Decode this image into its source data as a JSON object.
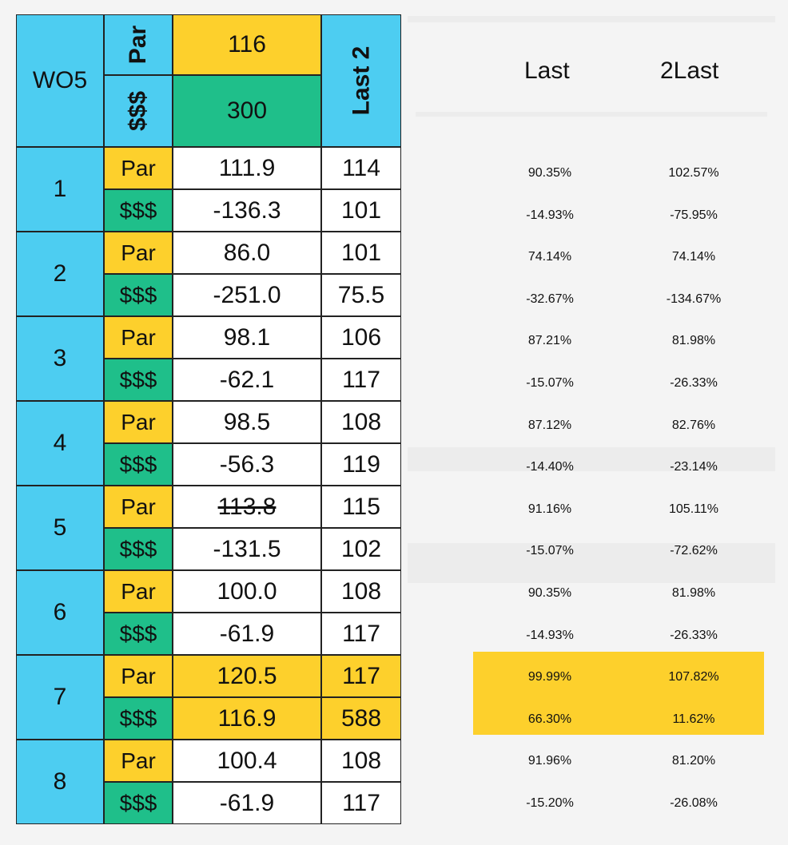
{
  "header": {
    "title": "WO5",
    "par_label": "Par",
    "money_label": "$$$",
    "par_value": "116",
    "money_value": "300",
    "last2_label": "Last 2"
  },
  "rows": [
    {
      "num": "1",
      "par": "111.9",
      "par_last2": "114",
      "money": "-136.3",
      "money_last2": "101"
    },
    {
      "num": "2",
      "par": "86.0",
      "par_last2": "101",
      "money": "-251.0",
      "money_last2": "75.5"
    },
    {
      "num": "3",
      "par": "98.1",
      "par_last2": "106",
      "money": "-62.1",
      "money_last2": "117"
    },
    {
      "num": "4",
      "par": "98.5",
      "par_last2": "108",
      "money": "-56.3",
      "money_last2": "119"
    },
    {
      "num": "5",
      "par": "113.8",
      "par_last2": "115",
      "money": "-131.5",
      "money_last2": "102"
    },
    {
      "num": "6",
      "par": "100.0",
      "par_last2": "108",
      "money": "-61.9",
      "money_last2": "117"
    },
    {
      "num": "7",
      "par": "120.5",
      "par_last2": "117",
      "money": "116.9",
      "money_last2": "588"
    },
    {
      "num": "8",
      "par": "100.4",
      "par_last2": "108",
      "money": "-61.9",
      "money_last2": "117"
    }
  ],
  "right": {
    "col1_header": "Last",
    "col2_header": "2Last",
    "values": [
      [
        "90.35%",
        "102.57%"
      ],
      [
        "-14.93%",
        "-75.95%"
      ],
      [
        "74.14%",
        "74.14%"
      ],
      [
        "-32.67%",
        "-134.67%"
      ],
      [
        "87.21%",
        "81.98%"
      ],
      [
        "-15.07%",
        "-26.33%"
      ],
      [
        "87.12%",
        "82.76%"
      ],
      [
        "-14.40%",
        "-23.14%"
      ],
      [
        "91.16%",
        "105.11%"
      ],
      [
        "-15.07%",
        "-72.62%"
      ],
      [
        "90.35%",
        "81.98%"
      ],
      [
        "-14.93%",
        "-26.33%"
      ],
      [
        "99.99%",
        "107.82%"
      ],
      [
        "66.30%",
        "11.62%"
      ],
      [
        "91.96%",
        "81.20%"
      ],
      [
        "-15.20%",
        "-26.08%"
      ]
    ]
  },
  "colors": {
    "blue": "#4dcdf1",
    "yellow": "#fdd02c",
    "green": "#1fbf8a",
    "highlighted_row": "7"
  }
}
